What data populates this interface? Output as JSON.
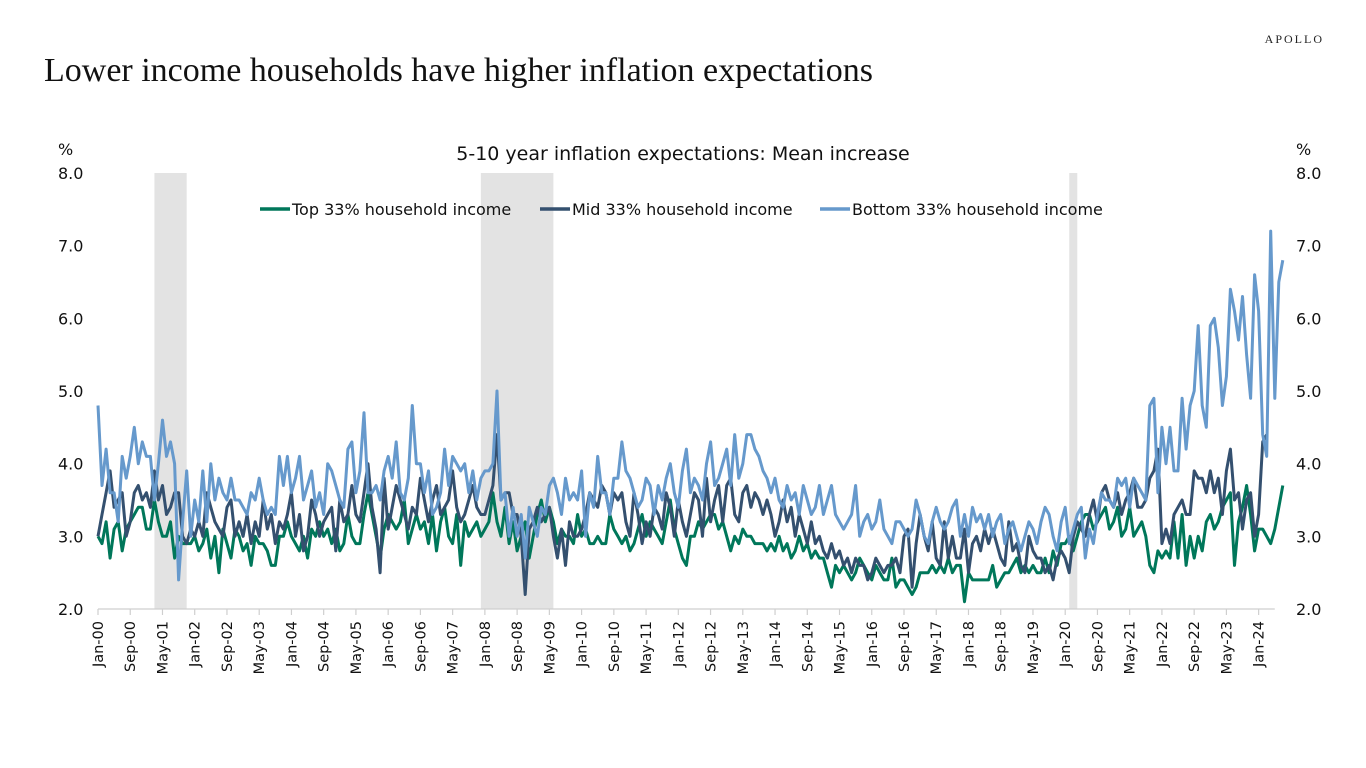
{
  "brand": "APOLLO",
  "headline": "Lower income households have higher inflation expectations",
  "chart_data": {
    "type": "line",
    "title": "5-10 year inflation expectations: Mean increase",
    "ylabel_left": "%",
    "ylabel_right": "%",
    "ylim": [
      2.0,
      8.0
    ],
    "yticks": [
      "2.0",
      "3.0",
      "4.0",
      "5.0",
      "6.0",
      "7.0",
      "8.0"
    ],
    "ytick_values": [
      2,
      3,
      4,
      5,
      6,
      7,
      8
    ],
    "x_start": "2000-01",
    "x_frequency": "monthly",
    "xlim_months": [
      0,
      292
    ],
    "xtick_labels": [
      "Jan-00",
      "Sep-00",
      "May-01",
      "Jan-02",
      "Sep-02",
      "May-03",
      "Jan-04",
      "Sep-04",
      "May-05",
      "Jan-06",
      "Sep-06",
      "May-07",
      "Jan-08",
      "Sep-08",
      "May-09",
      "Jan-10",
      "Sep-10",
      "May-11",
      "Jan-12",
      "Sep-12",
      "May-13",
      "Jan-14",
      "Sep-14",
      "May-15",
      "Jan-16",
      "Sep-16",
      "May-17",
      "Jan-18",
      "Sep-18",
      "May-19",
      "Jan-20",
      "Sep-20",
      "May-21",
      "Jan-22",
      "Sep-22",
      "May-23",
      "Jan-24"
    ],
    "xtick_interval_months": 8,
    "grid": false,
    "legend_position": "top-center",
    "recessions": [
      {
        "label": "2001 recession",
        "start_month": 14,
        "end_month": 22
      },
      {
        "label": "2008-09 recession",
        "start_month": 95,
        "end_month": 113
      },
      {
        "label": "2020 recession",
        "start_month": 241,
        "end_month": 243
      }
    ],
    "series": [
      {
        "name": "Top 33% household income",
        "color": "#00775A",
        "values": [
          3.0,
          2.9,
          3.2,
          2.7,
          3.1,
          3.2,
          2.8,
          3.1,
          3.2,
          3.3,
          3.4,
          3.4,
          3.1,
          3.1,
          3.5,
          3.2,
          3.0,
          3.0,
          3.2,
          2.7,
          3.0,
          2.9,
          2.9,
          2.9,
          3.0,
          2.8,
          2.9,
          3.1,
          2.7,
          3.0,
          2.5,
          3.1,
          2.9,
          2.7,
          3.1,
          3.0,
          2.8,
          2.9,
          2.6,
          3.0,
          2.9,
          2.9,
          2.8,
          2.6,
          2.6,
          3.0,
          3.0,
          3.2,
          3.0,
          2.9,
          2.8,
          3.0,
          2.7,
          3.1,
          3.0,
          3.2,
          3.0,
          3.1,
          2.9,
          3.1,
          2.8,
          2.9,
          3.3,
          3.0,
          2.9,
          2.9,
          3.3,
          3.6,
          3.3,
          3.0,
          2.7,
          3.1,
          3.3,
          3.2,
          3.1,
          3.2,
          3.5,
          2.9,
          3.1,
          3.3,
          3.1,
          3.2,
          2.9,
          3.3,
          2.8,
          3.2,
          3.4,
          3.0,
          2.9,
          3.3,
          2.6,
          3.2,
          3.0,
          3.1,
          3.2,
          3.0,
          3.1,
          3.2,
          3.6,
          3.2,
          3.0,
          3.4,
          2.9,
          3.2,
          2.8,
          3.0,
          3.2,
          2.7,
          3.0,
          3.3,
          3.5,
          3.2,
          3.4,
          3.2,
          2.9,
          3.1,
          3.0,
          3.0,
          2.9,
          3.3,
          3.0,
          3.1,
          2.9,
          2.9,
          3.0,
          2.9,
          2.9,
          3.3,
          3.1,
          3.0,
          2.9,
          3.0,
          2.8,
          2.9,
          3.1,
          3.3,
          3.0,
          3.2,
          3.1,
          3.0,
          2.9,
          3.2,
          3.5,
          3.1,
          2.9,
          2.7,
          2.6,
          3.0,
          3.0,
          3.2,
          3.1,
          3.2,
          3.3,
          3.3,
          3.1,
          3.2,
          3.0,
          2.8,
          3.0,
          2.9,
          3.1,
          3.0,
          3.0,
          2.9,
          2.9,
          2.9,
          2.8,
          2.9,
          2.8,
          3.0,
          2.8,
          2.9,
          2.7,
          2.8,
          3.0,
          2.8,
          2.9,
          2.7,
          2.8,
          2.7,
          2.7,
          2.5,
          2.3,
          2.6,
          2.5,
          2.6,
          2.5,
          2.4,
          2.5,
          2.7,
          2.6,
          2.5,
          2.4,
          2.6,
          2.5,
          2.4,
          2.4,
          2.7,
          2.3,
          2.4,
          2.4,
          2.3,
          2.2,
          2.3,
          2.5,
          2.5,
          2.5,
          2.6,
          2.5,
          2.6,
          2.5,
          2.7,
          2.5,
          2.6,
          2.6,
          2.1,
          2.5,
          2.4,
          2.4,
          2.4,
          2.4,
          2.4,
          2.6,
          2.3,
          2.4,
          2.5,
          2.5,
          2.6,
          2.7,
          2.5,
          2.6,
          2.5,
          2.6,
          2.5,
          2.5,
          2.7,
          2.5,
          2.8,
          2.6,
          2.9,
          2.9,
          3.0,
          2.8,
          3.0,
          3.2,
          3.3,
          3.3,
          3.1,
          3.2,
          3.3,
          3.4,
          3.1,
          3.2,
          3.4,
          3.0,
          3.1,
          3.4,
          3.0,
          3.1,
          3.2,
          3.0,
          2.6,
          2.5,
          2.8,
          2.7,
          2.8,
          2.7,
          3.2,
          2.7,
          3.3,
          2.6,
          3.0,
          2.7,
          3.0,
          2.8,
          3.2,
          3.3,
          3.1,
          3.2,
          3.4,
          3.5,
          3.6,
          2.6,
          3.2,
          3.4,
          3.7,
          3.3,
          2.8,
          3.1,
          3.1,
          3.0,
          2.9,
          3.1,
          3.4,
          3.7
        ]
      },
      {
        "name": "Mid 33% household income",
        "color": "#34506F",
        "values": [
          3.0,
          3.3,
          3.6,
          3.9,
          3.4,
          3.5,
          3.6,
          3.0,
          3.2,
          3.6,
          3.7,
          3.5,
          3.6,
          3.4,
          3.9,
          3.5,
          3.7,
          3.3,
          3.4,
          3.6,
          3.6,
          3.0,
          2.9,
          3.1,
          3.0,
          3.2,
          3.0,
          3.6,
          3.4,
          3.2,
          3.1,
          3.0,
          3.4,
          3.5,
          3.0,
          3.2,
          3.0,
          3.3,
          2.9,
          3.2,
          3.0,
          3.5,
          3.1,
          3.3,
          2.9,
          3.2,
          3.1,
          3.3,
          3.6,
          3.0,
          3.3,
          2.8,
          3.0,
          3.5,
          3.3,
          3.0,
          3.2,
          3.3,
          3.4,
          2.8,
          3.5,
          3.2,
          3.3,
          3.7,
          3.3,
          3.2,
          3.6,
          4.0,
          3.4,
          3.1,
          2.5,
          3.8,
          3.1,
          3.4,
          3.7,
          3.5,
          3.3,
          3.1,
          3.4,
          3.3,
          3.8,
          3.5,
          3.2,
          3.5,
          3.7,
          3.3,
          3.4,
          3.5,
          3.9,
          3.4,
          3.2,
          3.3,
          3.5,
          3.7,
          3.4,
          3.3,
          3.3,
          3.5,
          3.7,
          4.4,
          3.5,
          3.6,
          3.6,
          3.3,
          3.3,
          3.0,
          2.2,
          3.1,
          3.2,
          3.4,
          3.2,
          3.3,
          3.4,
          3.0,
          2.7,
          3.1,
          2.6,
          3.2,
          3.0,
          3.0,
          3.1,
          3.3,
          3.6,
          3.5,
          3.4,
          3.7,
          3.6,
          3.3,
          3.6,
          3.5,
          3.6,
          3.2,
          3.0,
          3.6,
          3.3,
          2.9,
          3.2,
          3.0,
          3.4,
          3.3,
          3.1,
          3.6,
          3.4,
          3.0,
          3.5,
          3.2,
          3.0,
          3.3,
          3.6,
          3.5,
          3.0,
          3.8,
          3.2,
          3.5,
          3.7,
          3.2,
          3.7,
          3.8,
          3.3,
          3.2,
          3.6,
          3.7,
          3.4,
          3.6,
          3.5,
          3.3,
          3.5,
          3.3,
          3.0,
          3.2,
          3.5,
          3.2,
          3.4,
          3.0,
          3.3,
          3.1,
          2.9,
          3.2,
          2.9,
          3.0,
          2.8,
          2.7,
          2.9,
          2.7,
          2.8,
          2.6,
          2.7,
          2.5,
          2.7,
          2.6,
          2.6,
          2.4,
          2.5,
          2.7,
          2.6,
          2.5,
          2.6,
          2.6,
          2.7,
          2.5,
          3.0,
          3.1,
          2.3,
          2.9,
          3.3,
          3.0,
          2.8,
          3.2,
          2.7,
          2.6,
          3.2,
          2.7,
          3.0,
          2.7,
          2.7,
          3.1,
          2.5,
          2.9,
          3.0,
          2.8,
          3.1,
          2.9,
          3.1,
          2.9,
          2.7,
          2.6,
          3.2,
          2.8,
          2.9,
          2.6,
          2.5,
          3.0,
          2.8,
          2.7,
          2.7,
          2.5,
          2.6,
          2.4,
          2.7,
          2.8,
          2.7,
          2.5,
          3.0,
          3.2,
          3.1,
          3.0,
          3.3,
          3.5,
          3.2,
          3.6,
          3.7,
          3.5,
          3.4,
          3.6,
          3.3,
          3.5,
          3.6,
          3.8,
          3.4,
          3.4,
          3.5,
          3.8,
          3.9,
          4.2,
          2.9,
          3.1,
          2.9,
          3.3,
          3.4,
          3.5,
          3.3,
          3.3,
          3.9,
          3.8,
          3.8,
          3.6,
          3.9,
          3.6,
          3.8,
          3.3,
          3.9,
          4.2,
          3.5,
          3.6,
          3.1,
          3.5,
          3.6,
          3.0,
          3.3,
          4.3,
          4.4
        ]
      },
      {
        "name": "Bottom 33% household income",
        "color": "#6699CC",
        "values": [
          4.8,
          3.7,
          4.2,
          3.6,
          3.6,
          3.2,
          4.1,
          3.8,
          4.1,
          4.5,
          4.0,
          4.3,
          4.1,
          4.1,
          3.5,
          4.0,
          4.6,
          4.1,
          4.3,
          4.0,
          2.4,
          3.2,
          3.9,
          3.0,
          3.5,
          3.2,
          3.9,
          3.2,
          4.0,
          3.5,
          3.8,
          3.6,
          3.5,
          3.8,
          3.5,
          3.5,
          3.4,
          3.3,
          3.6,
          3.5,
          3.8,
          3.5,
          3.3,
          3.4,
          3.3,
          4.1,
          3.7,
          4.1,
          3.6,
          3.8,
          4.1,
          3.5,
          3.7,
          3.9,
          3.4,
          3.6,
          3.3,
          4.0,
          3.9,
          3.7,
          3.5,
          3.4,
          4.2,
          4.3,
          3.6,
          3.9,
          4.7,
          3.6,
          3.6,
          3.7,
          3.5,
          3.9,
          4.1,
          3.8,
          4.3,
          3.6,
          3.5,
          3.8,
          4.8,
          4.0,
          4.0,
          3.6,
          3.9,
          3.3,
          3.4,
          3.6,
          4.2,
          3.7,
          4.1,
          4.0,
          3.9,
          4.0,
          3.6,
          3.9,
          3.5,
          3.8,
          3.9,
          3.9,
          4.0,
          5.0,
          3.5,
          3.6,
          3.0,
          3.4,
          3.0,
          3.3,
          2.7,
          3.4,
          3.2,
          3.0,
          3.4,
          3.3,
          3.7,
          3.8,
          3.6,
          3.3,
          3.8,
          3.5,
          3.6,
          3.5,
          3.9,
          3.0,
          3.6,
          3.4,
          4.1,
          3.6,
          3.6,
          3.3,
          3.8,
          3.8,
          4.3,
          3.9,
          3.8,
          3.6,
          3.4,
          3.5,
          3.8,
          3.7,
          3.3,
          3.7,
          3.5,
          3.8,
          4.0,
          3.6,
          3.4,
          3.9,
          4.2,
          3.6,
          3.8,
          3.7,
          3.5,
          4.0,
          4.3,
          3.7,
          3.8,
          4.0,
          4.2,
          3.7,
          4.4,
          3.8,
          4.0,
          4.4,
          4.4,
          4.2,
          4.1,
          3.9,
          3.8,
          3.6,
          3.8,
          3.5,
          3.4,
          3.7,
          3.5,
          3.6,
          3.3,
          3.7,
          3.5,
          3.3,
          3.4,
          3.7,
          3.3,
          3.5,
          3.7,
          3.3,
          3.2,
          3.1,
          3.2,
          3.3,
          3.7,
          3.0,
          3.2,
          3.3,
          3.1,
          3.2,
          3.5,
          3.1,
          3.0,
          2.9,
          3.2,
          3.2,
          3.1,
          3.0,
          3.1,
          3.5,
          3.3,
          3.0,
          2.9,
          3.2,
          3.4,
          3.2,
          3.1,
          3.2,
          3.4,
          3.5,
          3.0,
          3.3,
          3.0,
          3.4,
          3.2,
          3.3,
          3.1,
          3.3,
          3.0,
          3.2,
          3.3,
          2.9,
          3.1,
          3.2,
          3.0,
          2.8,
          3.0,
          3.2,
          3.1,
          2.9,
          3.2,
          3.4,
          3.3,
          3.0,
          2.8,
          3.2,
          3.4,
          2.9,
          3.1,
          3.3,
          3.4,
          2.7,
          3.1,
          2.9,
          3.3,
          3.6,
          3.5,
          3.5,
          3.4,
          3.8,
          3.7,
          3.8,
          3.4,
          3.8,
          3.7,
          3.6,
          3.5,
          4.8,
          4.9,
          3.6,
          4.5,
          4.0,
          4.5,
          3.9,
          3.9,
          4.9,
          4.2,
          4.8,
          5.0,
          5.9,
          4.8,
          4.5,
          5.9,
          6.0,
          5.6,
          4.8,
          5.2,
          6.4,
          6.1,
          5.7,
          6.3,
          5.5,
          4.9,
          6.6,
          6.1,
          4.4,
          4.1,
          7.2,
          4.9,
          6.5,
          6.8
        ]
      }
    ]
  }
}
